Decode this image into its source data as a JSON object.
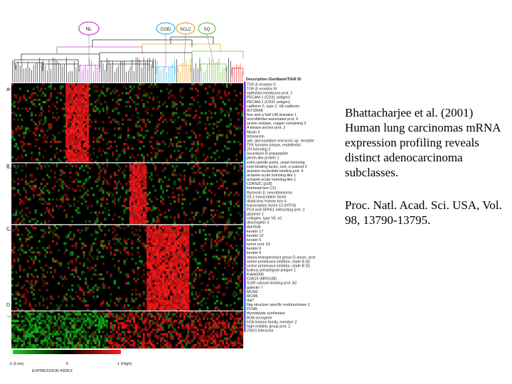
{
  "caption": {
    "citation": "Bhattacharjee et al. (2001) Human lung carcinomas mRNA expression profiling reveals distinct adenocarcinoma subclasses.",
    "journal": "Proc. Natl. Acad. Sci. USA, Vol. 98, 13790-13795."
  },
  "figure": {
    "dendrogram_groups": [
      {
        "label": "NL",
        "color": "#d23bd2"
      },
      {
        "label": "COID",
        "color": "#39b8e6"
      },
      {
        "label": "SCLC",
        "color": "#e8a63a"
      },
      {
        "label": "SQ",
        "color": "#6cc63c"
      }
    ],
    "column_header": "Description /GenBank/TIGR ID",
    "block_labels": [
      "A",
      "B",
      "C",
      "D"
    ],
    "gene_labels": [
      "TGF-β receptor II",
      "TGF-β receptor III",
      "epithelial membrane prot. 2",
      "PECAM-1 (CD31 antigen)",
      "PECAM-1 (CD31 antigen)",
      "cadherin 5, type 2, VE-cadherin",
      "AI718648",
      "four and a half LIM domains 1",
      "microfibrillar-associated prot. 4",
      "serine oxidase, copper containing 3",
      "A kinase anchor prot. 2",
      "fibulin 3",
      "tetranectin",
      "adv. glycosylation end prod.-sp. receptor",
      "TEK tyrosine kinase, endothelial",
      "ZH homolog 2",
      "neurokinin B polypeptide",
      "plexin-like protein 1",
      "extra spindle poles, yeast homolog",
      "core-binding factor, runt, α subunit 2",
      "guanine nucleotide binding prot. 4",
      "achaete-scute homolog-like 1",
      "achaete-scute homolog-like 1",
      "CDKN2C (p18)",
      "forkhead box C11",
      "thymosin β, neuroblastoma",
      "ISL1 transcription factor",
      "distal-less homeo box 6",
      "transcription factor 12 (HTF4)",
      "PC4 and SFRS1 interacting prot. 2",
      "glypican 1",
      "collagen, type VII, α1",
      "desmoglein 3",
      "W47595",
      "keratin 17",
      "keratin 13",
      "keratin 5",
      "tumor prot. 63",
      "keratin 6",
      "keratin 6",
      "ataxia-telangiectasia group D-assoc. prot.",
      "serine proteinase inhibitor, clade B (5)",
      "serine proteinase inhibitor, clade B (5)",
      "bullous pemphigoid antigen 1",
      "KIAA0099",
      "CaN19 (MRS108)",
      "S100 calcium-binding prot. A2",
      "galectin 7",
      "MCM2",
      "MCM6",
      "Ifat7",
      "flap structure specific endonuclease 1",
      "PCNA",
      "thymidylate synthetase",
      "BUB oncogene",
      "H2A histone family, member Z",
      "high-mobility group prot. 2",
      "ZW10 interactor"
    ],
    "scale": {
      "min_label": "-1 (Low)",
      "mid_label": "0",
      "max_label": "1 (High)",
      "title": "EXPRESSION INDEX"
    },
    "colors": {
      "high": "#ff1a1a",
      "low": "#1acc1a",
      "neutral": "#000000"
    }
  }
}
